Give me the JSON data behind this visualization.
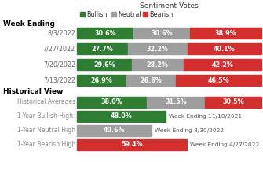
{
  "title": "Sentiment Votes",
  "legend": [
    "Bullish",
    "Neutral",
    "Bearish"
  ],
  "legend_colors": [
    "#2e7d32",
    "#9e9e9e",
    "#d32f2f"
  ],
  "week_labels": [
    "8/3/2022",
    "7/27/2022",
    "7/20/2022",
    "7/13/2022"
  ],
  "week_data": [
    [
      30.6,
      30.6,
      38.9
    ],
    [
      27.7,
      32.2,
      40.1
    ],
    [
      29.6,
      28.2,
      42.2
    ],
    [
      26.9,
      26.6,
      46.5
    ]
  ],
  "hist_labels": [
    "Historical Averages",
    "1-Year Bullish High:",
    "1-Year Neutral High",
    "1-Year Bearish High"
  ],
  "hist_data": [
    [
      38.0,
      31.5,
      30.5
    ],
    [
      48.0,
      0,
      0
    ],
    [
      0,
      40.6,
      0
    ],
    [
      0,
      0,
      59.4
    ]
  ],
  "hist_annotations": [
    "",
    "Week Ending 11/10/2021",
    "Week Ending 3/30/2022",
    "Week Ending 4/27/2022"
  ],
  "bullish_color": "#2e7d32",
  "neutral_color": "#9e9e9e",
  "bearish_color": "#d32f2f",
  "bg_color": "#ffffff",
  "label_color_week": "#666666",
  "label_color_hist": "#888888",
  "bar_text_color": "#ffffff",
  "week_header_color": "#000000",
  "hist_header_color": "#000000",
  "title_fontsize": 6.5,
  "legend_fontsize": 5.8,
  "header_fontsize": 6.5,
  "label_fontsize_week": 5.8,
  "label_fontsize_hist": 5.5,
  "bar_text_fontsize": 5.8,
  "ann_fontsize": 5.3
}
